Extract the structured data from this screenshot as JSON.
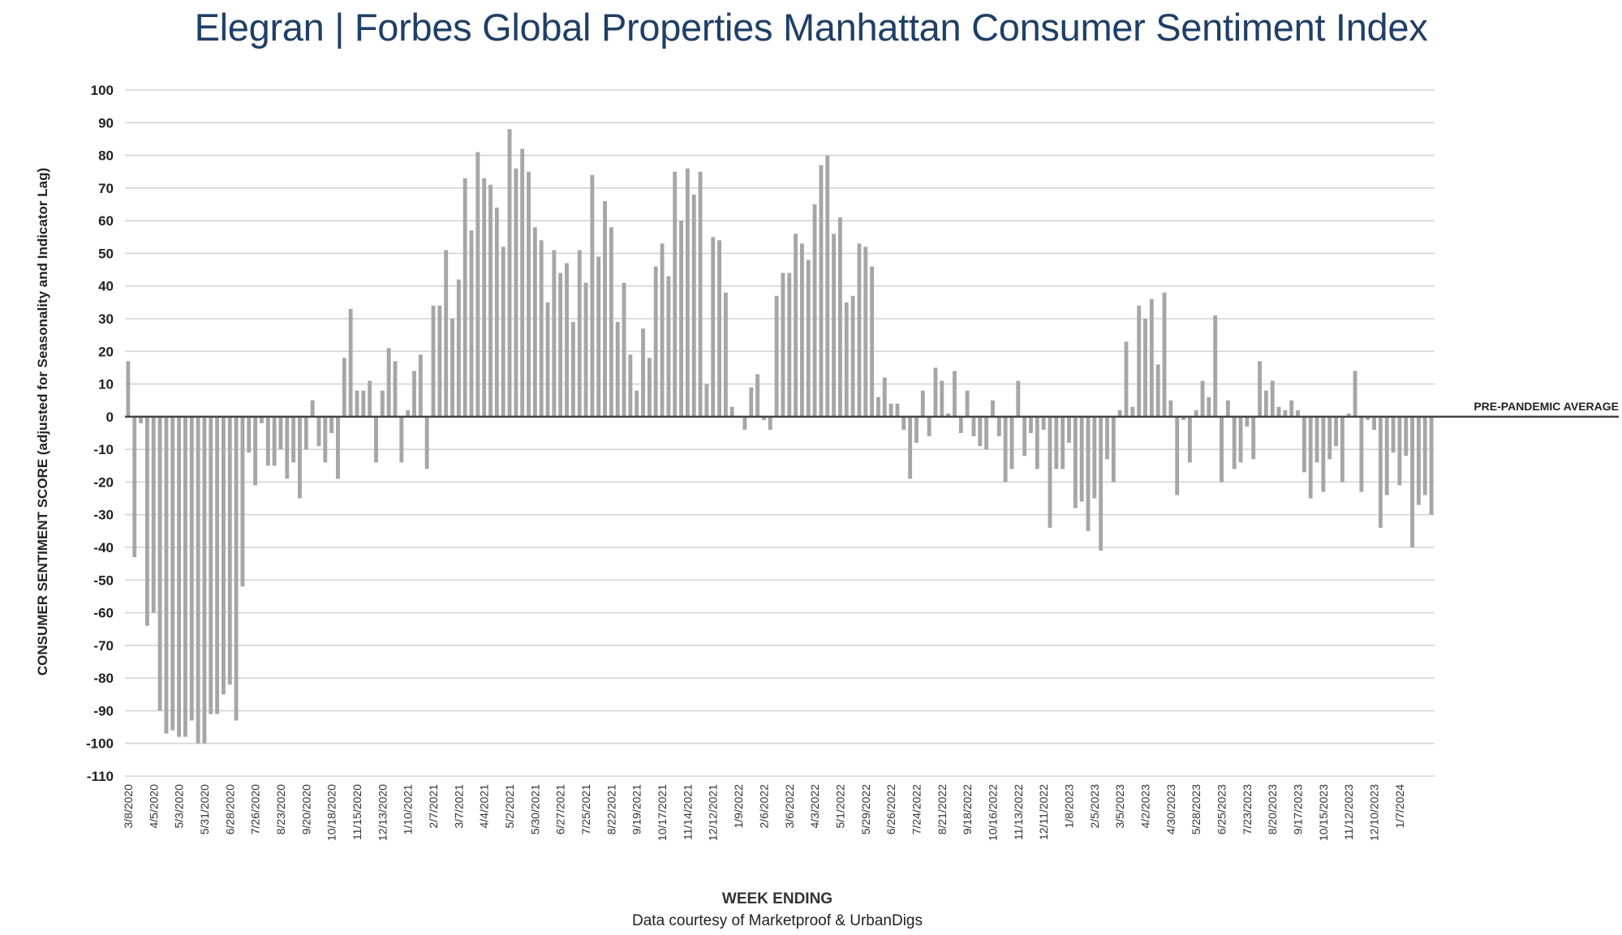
{
  "title_brand": "Elegran | Forbes Global Properties",
  "title_rest": "Manhattan Consumer Sentiment Index",
  "chart_data": {
    "type": "bar",
    "title": "Elegran | Forbes Global Properties Manhattan Consumer Sentiment Index",
    "xlabel": "WEEK ENDING",
    "ylabel": "CONSUMER SENTIMENT SCORE (adjusted for Seasonality and Indicator Lag)",
    "source": "Data courtesy of Marketproof & UrbanDigs",
    "ylim": [
      -110,
      100
    ],
    "yticks": [
      100,
      90,
      80,
      70,
      60,
      50,
      40,
      30,
      20,
      10,
      0,
      -10,
      -20,
      -30,
      -40,
      -50,
      -60,
      -70,
      -80,
      -90,
      -100,
      -110
    ],
    "grid": true,
    "bar_color": "#a6a6a6",
    "reference_line": {
      "label": "PRE-PANDEMIC  AVERAGE",
      "value": 0
    },
    "tick_labels": [
      "3/8/2020",
      "4/5/2020",
      "5/3/2020",
      "5/31/2020",
      "6/28/2020",
      "7/26/2020",
      "8/23/2020",
      "9/20/2020",
      "10/18/2020",
      "11/15/2020",
      "12/13/2020",
      "1/10/2021",
      "2/7/2021",
      "3/7/2021",
      "4/4/2021",
      "5/2/2021",
      "5/30/2021",
      "6/27/2021",
      "7/25/2021",
      "8/22/2021",
      "9/19/2021",
      "10/17/2021",
      "11/14/2021",
      "12/12/2021",
      "1/9/2022",
      "2/6/2022",
      "3/6/2022",
      "4/3/2022",
      "5/1/2022",
      "5/29/2022",
      "6/26/2022",
      "7/24/2022",
      "8/21/2022",
      "9/18/2022",
      "10/16/2022",
      "11/13/2022",
      "12/11/2022",
      "1/8/2023",
      "2/5/2023",
      "3/5/2023",
      "4/2/2023",
      "4/30/2023",
      "5/28/2023",
      "6/25/2023",
      "7/23/2023",
      "8/20/2023",
      "9/17/2023",
      "10/15/2023",
      "11/12/2023",
      "12/10/2023",
      "1/7/2024"
    ],
    "values": [
      17,
      -43,
      -2,
      -64,
      -60,
      -90,
      -97,
      -96,
      -98,
      -98,
      -93,
      -100,
      -100,
      -91,
      -91,
      -85,
      -82,
      -93,
      -52,
      -11,
      -21,
      -2,
      -15,
      -15,
      -10,
      -19,
      -14,
      -25,
      -10,
      5,
      -9,
      -14,
      -5,
      -19,
      18,
      33,
      8,
      8,
      11,
      -14,
      8,
      21,
      17,
      -14,
      2,
      14,
      19,
      -16,
      34,
      34,
      51,
      30,
      42,
      73,
      57,
      81,
      73,
      71,
      64,
      52,
      88,
      76,
      82,
      75,
      58,
      54,
      35,
      51,
      44,
      47,
      29,
      51,
      41,
      74,
      49,
      66,
      58,
      29,
      41,
      19,
      8,
      27,
      18,
      46,
      53,
      43,
      75,
      60,
      76,
      68,
      75,
      10,
      55,
      54,
      38,
      3,
      0,
      -4,
      9,
      13,
      -1,
      -4,
      37,
      44,
      44,
      56,
      53,
      48,
      65,
      77,
      80,
      56,
      61,
      35,
      37,
      53,
      52,
      46,
      6,
      12,
      4,
      4,
      -4,
      -19,
      -8,
      8,
      -6,
      15,
      11,
      1,
      14,
      -5,
      8,
      -6,
      -9,
      -10,
      5,
      -6,
      -20,
      -16,
      11,
      -12,
      -5,
      -16,
      -4,
      -34,
      -16,
      -16,
      -8,
      -28,
      -26,
      -35,
      -25,
      -41,
      -13,
      -20,
      2,
      23,
      3,
      34,
      30,
      36,
      16,
      38,
      5,
      -24,
      -1,
      -14,
      2,
      11,
      6,
      31,
      -20,
      5,
      -16,
      -14,
      -3,
      -13,
      17,
      8,
      11,
      3,
      2,
      5,
      2,
      -17,
      -25,
      -14,
      -23,
      -13,
      -9,
      -20,
      1,
      14,
      -23,
      -1,
      -4,
      -34,
      -24,
      -11,
      -21,
      -12,
      -40,
      -27,
      -24,
      -30
    ]
  }
}
